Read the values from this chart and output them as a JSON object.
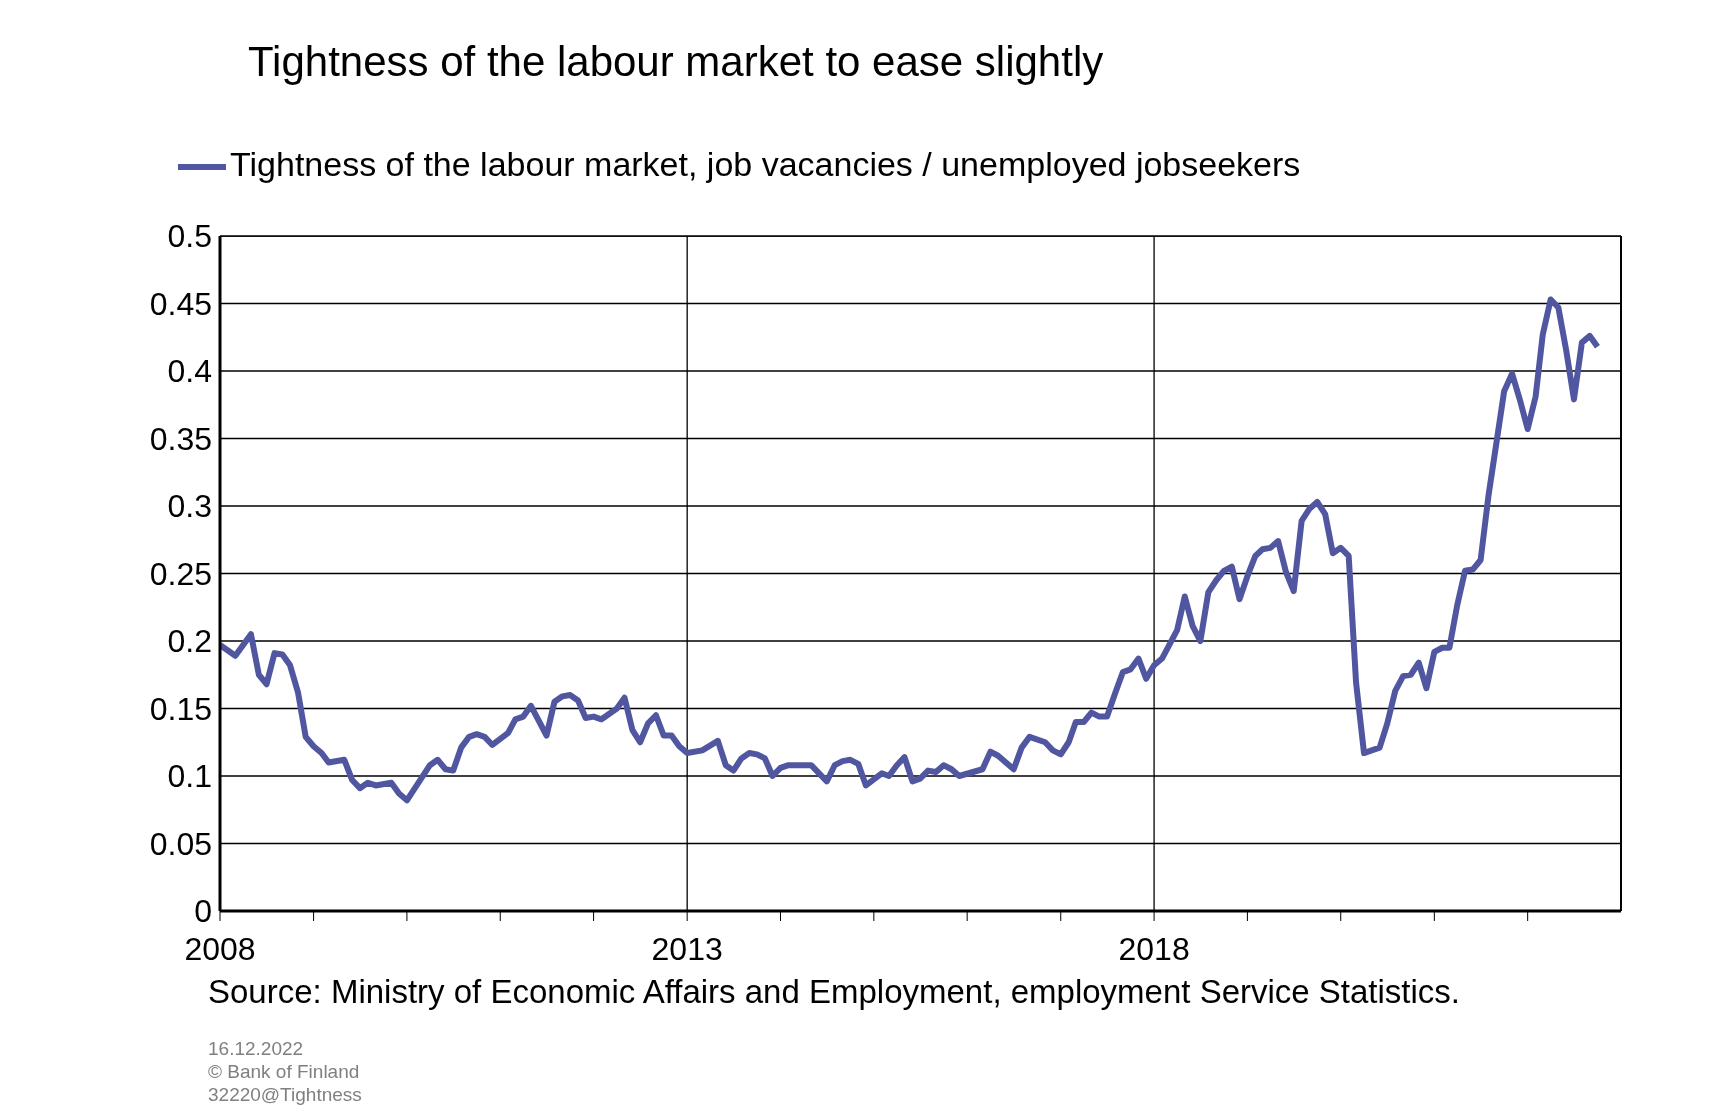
{
  "chart_data": {
    "type": "line",
    "title": "Tightness of the labour market to ease slightly",
    "x": [
      "2008-01",
      "2008-02",
      "2008-03",
      "2008-05",
      "2008-06",
      "2008-07",
      "2008-08",
      "2008-09",
      "2008-10",
      "2008-11",
      "2008-12",
      "2009-01",
      "2009-02",
      "2009-03",
      "2009-05",
      "2009-06",
      "2009-07",
      "2009-08",
      "2009-09",
      "2009-11",
      "2009-12",
      "2010-01",
      "2010-04",
      "2010-05",
      "2010-06",
      "2010-07",
      "2010-08",
      "2010-09",
      "2010-10",
      "2010-11",
      "2010-12",
      "2011-02",
      "2011-03",
      "2011-04",
      "2011-05",
      "2011-07",
      "2011-08",
      "2011-09",
      "2011-10",
      "2011-11",
      "2011-12",
      "2012-01",
      "2012-02",
      "2012-04",
      "2012-05",
      "2012-06",
      "2012-07",
      "2012-08",
      "2012-09",
      "2012-10",
      "2012-11",
      "2012-12",
      "2013-01",
      "2013-03",
      "2013-05",
      "2013-06",
      "2013-07",
      "2013-08",
      "2013-09",
      "2013-10",
      "2013-11",
      "2013-12",
      "2014-01",
      "2014-02",
      "2014-05",
      "2014-07",
      "2014-08",
      "2014-09",
      "2014-10",
      "2014-11",
      "2014-12",
      "2015-02",
      "2015-03",
      "2015-04",
      "2015-05",
      "2015-06",
      "2015-07",
      "2015-08",
      "2015-09",
      "2015-10",
      "2015-11",
      "2015-12",
      "2016-03",
      "2016-04",
      "2016-05",
      "2016-07",
      "2016-08",
      "2016-09",
      "2016-11",
      "2016-12",
      "2017-01",
      "2017-02",
      "2017-03",
      "2017-04",
      "2017-05",
      "2017-06",
      "2017-07",
      "2017-08",
      "2017-09",
      "2017-10",
      "2017-11",
      "2017-12",
      "2018-01",
      "2018-02",
      "2018-03",
      "2018-04",
      "2018-05",
      "2018-06",
      "2018-07",
      "2018-08",
      "2018-09",
      "2018-10",
      "2018-11",
      "2018-12",
      "2019-01",
      "2019-02",
      "2019-03",
      "2019-04",
      "2019-05",
      "2019-06",
      "2019-07",
      "2019-08",
      "2019-09",
      "2019-10",
      "2019-11",
      "2019-12",
      "2020-01",
      "2020-02",
      "2020-03",
      "2020-04",
      "2020-05",
      "2020-06",
      "2020-07",
      "2020-08",
      "2020-09",
      "2020-10",
      "2020-11",
      "2020-12",
      "2021-01",
      "2021-02",
      "2021-03",
      "2021-04",
      "2021-05",
      "2021-06",
      "2021-07",
      "2021-08",
      "2021-09",
      "2021-10",
      "2021-11",
      "2021-12",
      "2022-01",
      "2022-02",
      "2022-03",
      "2022-04",
      "2022-05",
      "2022-06",
      "2022-07",
      "2022-08",
      "2022-09",
      "2022-10"
    ],
    "series": [
      {
        "name": "Tightness of the labour market, job vacancies / unemployed jobseekers",
        "color": "#5057a0",
        "values": [
          0.197,
          0.193,
          0.189,
          0.205,
          0.175,
          0.168,
          0.191,
          0.19,
          0.182,
          0.162,
          0.129,
          0.122,
          0.117,
          0.11,
          0.112,
          0.097,
          0.091,
          0.095,
          0.093,
          0.095,
          0.087,
          0.082,
          0.108,
          0.112,
          0.105,
          0.104,
          0.121,
          0.129,
          0.131,
          0.129,
          0.123,
          0.132,
          0.142,
          0.144,
          0.152,
          0.13,
          0.155,
          0.159,
          0.16,
          0.156,
          0.143,
          0.144,
          0.142,
          0.15,
          0.158,
          0.134,
          0.125,
          0.139,
          0.145,
          0.13,
          0.13,
          0.122,
          0.117,
          0.119,
          0.126,
          0.108,
          0.104,
          0.113,
          0.117,
          0.116,
          0.113,
          0.1,
          0.106,
          0.108,
          0.108,
          0.096,
          0.108,
          0.111,
          0.112,
          0.109,
          0.093,
          0.102,
          0.1,
          0.108,
          0.114,
          0.096,
          0.098,
          0.104,
          0.103,
          0.108,
          0.105,
          0.1,
          0.105,
          0.118,
          0.115,
          0.105,
          0.121,
          0.129,
          0.125,
          0.119,
          0.116,
          0.125,
          0.14,
          0.14,
          0.147,
          0.144,
          0.144,
          0.161,
          0.177,
          0.179,
          0.187,
          0.172,
          0.182,
          0.187,
          0.197,
          0.208,
          0.233,
          0.211,
          0.2,
          0.236,
          0.245,
          0.252,
          0.255,
          0.231,
          0.248,
          0.263,
          0.268,
          0.269,
          0.274,
          0.251,
          0.237,
          0.289,
          0.298,
          0.303,
          0.294,
          0.265,
          0.269,
          0.263,
          0.169,
          0.117,
          0.119,
          0.121,
          0.139,
          0.163,
          0.174,
          0.175,
          0.184,
          0.165,
          0.192,
          0.195,
          0.195,
          0.227,
          0.252,
          0.253,
          0.26,
          0.308,
          0.347,
          0.385,
          0.398,
          0.379,
          0.357,
          0.381,
          0.427,
          0.453,
          0.447,
          0.415,
          0.379,
          0.421,
          0.426,
          0.418
        ]
      }
    ],
    "xlim": [
      "2008-01",
      "2023-01"
    ],
    "xticks": [
      "2008",
      {
        "value": "2009",
        "label": null
      },
      {
        "value": "2010",
        "label": null
      },
      {
        "value": "2011",
        "label": null
      },
      {
        "value": "2012",
        "label": null
      },
      "2013",
      {
        "value": "2014",
        "label": null
      },
      {
        "value": "2015",
        "label": null
      },
      {
        "value": "2016",
        "label": null
      },
      {
        "value": "2017",
        "label": null
      },
      "2018",
      {
        "value": "2019",
        "label": null
      },
      {
        "value": "2020",
        "label": null
      },
      {
        "value": "2021",
        "label": null
      },
      {
        "value": "2022",
        "label": null
      }
    ],
    "ylim": [
      0,
      0.5
    ],
    "yticks": [
      0,
      0.05,
      0.1,
      0.15,
      0.2,
      0.25,
      0.3,
      0.35,
      0.4,
      0.45,
      0.5
    ],
    "grid": true,
    "legend": "top",
    "marker": "none",
    "line_style": "solid",
    "annotations": [
      "Source: Ministry of Economic Affairs and Employment, employment Service Statistics.",
      "16.12.2022",
      "© Bank of Finland",
      "32220@Tightness"
    ]
  }
}
